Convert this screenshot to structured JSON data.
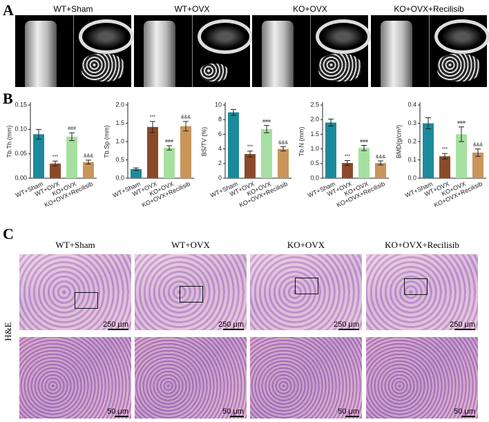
{
  "panels": {
    "a": {
      "label": "A",
      "columns": [
        "WT+Sham",
        "WT+OVX",
        "KO+OVX",
        "KO+OVX+Recilisib"
      ]
    },
    "b": {
      "label": "B"
    },
    "c": {
      "label": "C",
      "columns": [
        "WT+Sham",
        "WT+OVX",
        "KO+OVX",
        "KO+OVX+Recilisib"
      ],
      "stain": "H&E",
      "scale_low": [
        "250 μm",
        "250 μm",
        "250 μm",
        "250 μm"
      ],
      "scale_high": [
        "50 μm",
        "50 μm",
        "50 μm",
        "50 μm"
      ]
    }
  },
  "chart_data": [
    {
      "type": "bar",
      "y_label": "Tb.Th (mm)",
      "categories": [
        "WT+Sham",
        "WT+OVX",
        "KO+OVX",
        "KO+OVX+Recilisib"
      ],
      "values": [
        0.09,
        0.03,
        0.085,
        0.033
      ],
      "errors": [
        0.01,
        0.005,
        0.008,
        0.004
      ],
      "significance": [
        null,
        "***",
        "###",
        "&&&"
      ],
      "colors": [
        "#1b8a9c",
        "#8a4a2a",
        "#a6e0a0",
        "#c9955a"
      ],
      "ylim": [
        0,
        0.15
      ],
      "yticks": [
        {
          "value": 0,
          "label": "0.00"
        },
        {
          "value": 0.05,
          "label": "0.05"
        },
        {
          "value": 0.1,
          "label": "0.10"
        },
        {
          "value": 0.15,
          "label": "0.15"
        }
      ]
    },
    {
      "type": "bar",
      "y_label": "Tb.Sp (mm)",
      "categories": [
        "WT+Sham",
        "WT+OVX",
        "KO+OVX",
        "KO+OVX+Recilisib"
      ],
      "values": [
        0.25,
        1.4,
        0.83,
        1.42
      ],
      "errors": [
        0.03,
        0.15,
        0.06,
        0.13
      ],
      "significance": [
        null,
        "***",
        "###",
        "&&&"
      ],
      "colors": [
        "#1b8a9c",
        "#8a4a2a",
        "#a6e0a0",
        "#c9955a"
      ],
      "ylim": [
        0,
        2
      ],
      "yticks": [
        {
          "value": 0,
          "label": "0.0"
        },
        {
          "value": 0.5,
          "label": "0.5"
        },
        {
          "value": 1,
          "label": "1.0"
        },
        {
          "value": 1.5,
          "label": "1.5"
        },
        {
          "value": 2,
          "label": "2.0"
        }
      ]
    },
    {
      "type": "bar",
      "y_label": "BS/TV (%)",
      "categories": [
        "WT+Sham",
        "WT+OVX",
        "KO+OVX",
        "KO+OVX+Recilisib"
      ],
      "values": [
        9.0,
        3.3,
        6.7,
        4.0
      ],
      "errors": [
        0.4,
        0.4,
        0.5,
        0.3
      ],
      "significance": [
        null,
        "***",
        "###",
        "&&&"
      ],
      "colors": [
        "#1b8a9c",
        "#8a4a2a",
        "#a6e0a0",
        "#c9955a"
      ],
      "ylim": [
        0,
        10
      ],
      "yticks": [
        0,
        2,
        4,
        6,
        8,
        10
      ]
    },
    {
      "type": "bar",
      "y_label": "Tb.N (mm)",
      "categories": [
        "WT+Sham",
        "WT+OVX",
        "KO+OVX",
        "KO+OVX+Recilisib"
      ],
      "values": [
        1.9,
        0.52,
        1.03,
        0.52
      ],
      "errors": [
        0.12,
        0.08,
        0.09,
        0.07
      ],
      "significance": [
        null,
        "***",
        "###",
        "&&&"
      ],
      "colors": [
        "#1b8a9c",
        "#8a4a2a",
        "#a6e0a0",
        "#c9955a"
      ],
      "ylim": [
        0,
        2.5
      ],
      "yticks": [
        {
          "value": 0,
          "label": "0.0"
        },
        {
          "value": 0.5,
          "label": "0.5"
        },
        {
          "value": 1,
          "label": "1.0"
        },
        {
          "value": 1.5,
          "label": "1.5"
        },
        {
          "value": 2,
          "label": "2.0"
        },
        {
          "value": 2.5,
          "label": "2.5"
        }
      ]
    },
    {
      "type": "bar",
      "y_label": "BMD(g/cm³)",
      "categories": [
        "WT+Sham",
        "WT+OVX",
        "KO+OVX",
        "KO+OVX+Recilisib"
      ],
      "values": [
        0.3,
        0.12,
        0.24,
        0.14
      ],
      "errors": [
        0.03,
        0.015,
        0.04,
        0.02
      ],
      "significance": [
        null,
        "***",
        "###",
        "&&&"
      ],
      "colors": [
        "#1b8a9c",
        "#8a4a2a",
        "#a6e0a0",
        "#c9955a"
      ],
      "ylim": [
        0,
        0.4
      ],
      "yticks": [
        {
          "value": 0,
          "label": "0.0"
        },
        {
          "value": 0.1,
          "label": "0.1"
        },
        {
          "value": 0.2,
          "label": "0.2"
        },
        {
          "value": 0.3,
          "label": "0.3"
        },
        {
          "value": 0.4,
          "label": "0.4"
        }
      ]
    }
  ]
}
